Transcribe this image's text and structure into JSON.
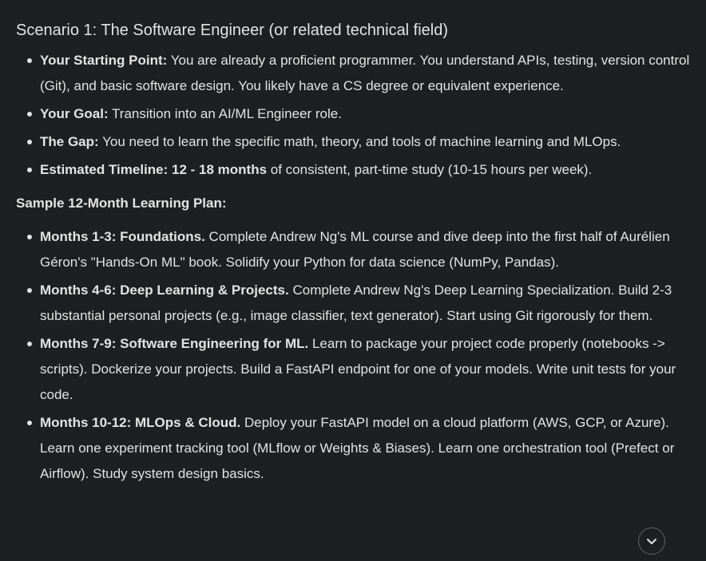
{
  "scenario": {
    "title": "Scenario 1: The Software Engineer (or related technical field)",
    "items": [
      {
        "label": "Your Starting Point:",
        "text": " You are already a proficient programmer. You understand APIs, testing, version control (Git), and basic software design. You likely have a CS degree or equivalent experience."
      },
      {
        "label": "Your Goal:",
        "text": " Transition into an AI/ML Engineer role."
      },
      {
        "label": "The Gap:",
        "text": " You need to learn the specific math, theory, and tools of machine learning and MLOps."
      },
      {
        "label": "Estimated Timeline: 12 - 18 months",
        "text": " of consistent, part-time study (10-15 hours per week)."
      }
    ]
  },
  "plan": {
    "title": "Sample 12-Month Learning Plan:",
    "items": [
      {
        "label": "Months 1-3: Foundations.",
        "text": " Complete Andrew Ng's ML course and dive deep into the first half of Aurélien Géron's \"Hands-On ML\" book. Solidify your Python for data science (NumPy, Pandas)."
      },
      {
        "label": "Months 4-6: Deep Learning & Projects.",
        "text": " Complete Andrew Ng's Deep Learning Specialization. Build 2-3 substantial personal projects (e.g., image classifier, text generator). Start using Git rigorously for them."
      },
      {
        "label": "Months 7-9: Software Engineering for ML.",
        "text": " Learn to package your project code properly (notebooks -> scripts). Dockerize your projects. Build a FastAPI endpoint for one of your models. Write unit tests for your code."
      },
      {
        "label": "Months 10-12: MLOps & Cloud.",
        "text": " Deploy your FastAPI model on a cloud platform (AWS, GCP, or Azure). Learn one experiment tracking tool (MLflow or Weights & Biases). Learn one orchestration tool (Prefect or Airflow). Study system design basics."
      }
    ]
  },
  "scroll_button": {
    "icon": "chevron-down-icon"
  },
  "colors": {
    "background": "#1e1f20",
    "text": "#e3e3e3",
    "button_border": "#5f6368"
  }
}
